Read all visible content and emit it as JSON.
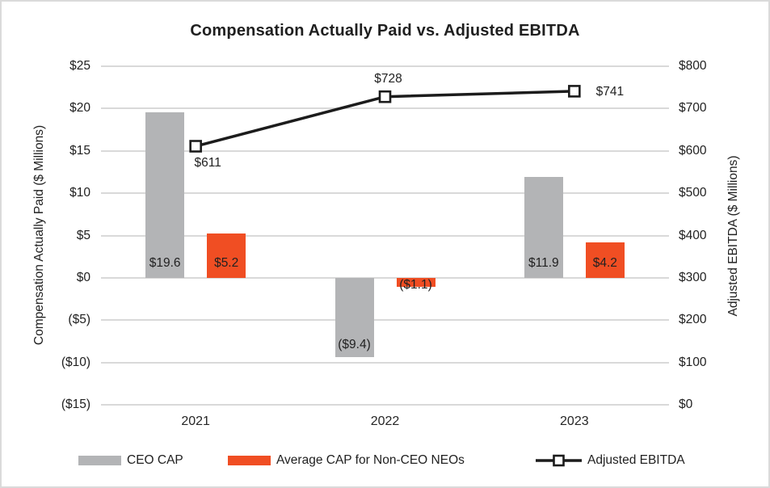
{
  "title": "Compensation Actually Paid vs. Adjusted EBITDA",
  "chart_data": {
    "type": "combo_bar_line",
    "title": "Compensation Actually Paid vs. Adjusted EBITDA",
    "categories": [
      "2021",
      "2022",
      "2023"
    ],
    "series": [
      {
        "name": "CEO CAP",
        "type": "bar",
        "axis": "left",
        "color": "#B3B4B6",
        "values": [
          19.6,
          -9.4,
          11.9
        ],
        "data_labels": [
          "$19.6",
          "($9.4)",
          "$11.9"
        ]
      },
      {
        "name": "Average CAP for Non-CEO NEOs",
        "type": "bar",
        "axis": "left",
        "color": "#F04E23",
        "values": [
          5.2,
          -1.1,
          4.2
        ],
        "data_labels": [
          "$5.2",
          "($1.1)",
          "$4.2"
        ]
      },
      {
        "name": "Adjusted EBITDA",
        "type": "line",
        "axis": "right",
        "color": "#1C1C1C",
        "marker": "open-square",
        "values": [
          611,
          728,
          741
        ],
        "data_labels": [
          "$611",
          "$728",
          "$741"
        ],
        "data_label_positions": [
          "below",
          "above",
          "right"
        ]
      }
    ],
    "left_axis": {
      "title": "Compensation Actually Paid ($ Millions)",
      "min": -15,
      "max": 25,
      "step": 5,
      "ticks": [
        {
          "value": 25,
          "label": "$25"
        },
        {
          "value": 20,
          "label": "$20"
        },
        {
          "value": 15,
          "label": "$15"
        },
        {
          "value": 10,
          "label": "$10"
        },
        {
          "value": 5,
          "label": "$5"
        },
        {
          "value": 0,
          "label": "$0"
        },
        {
          "value": -5,
          "label": "($5)"
        },
        {
          "value": -10,
          "label": "($10)"
        },
        {
          "value": -15,
          "label": "($15)"
        }
      ]
    },
    "right_axis": {
      "title": "Adjusted EBITDA ($ Millions)",
      "min": 0,
      "max": 800,
      "step": 100,
      "ticks": [
        {
          "value": 800,
          "label": "$800"
        },
        {
          "value": 700,
          "label": "$700"
        },
        {
          "value": 600,
          "label": "$600"
        },
        {
          "value": 500,
          "label": "$500"
        },
        {
          "value": 400,
          "label": "$400"
        },
        {
          "value": 300,
          "label": "$300"
        },
        {
          "value": 200,
          "label": "$200"
        },
        {
          "value": 100,
          "label": "$100"
        },
        {
          "value": 0,
          "label": "$0"
        }
      ]
    },
    "grid": true,
    "legend_position": "bottom"
  },
  "colors": {
    "bar_gray": "#B3B4B6",
    "bar_orange": "#F04E23",
    "line_black": "#1C1C1C",
    "gridline": "#D9D9D9",
    "text": "#212121"
  }
}
